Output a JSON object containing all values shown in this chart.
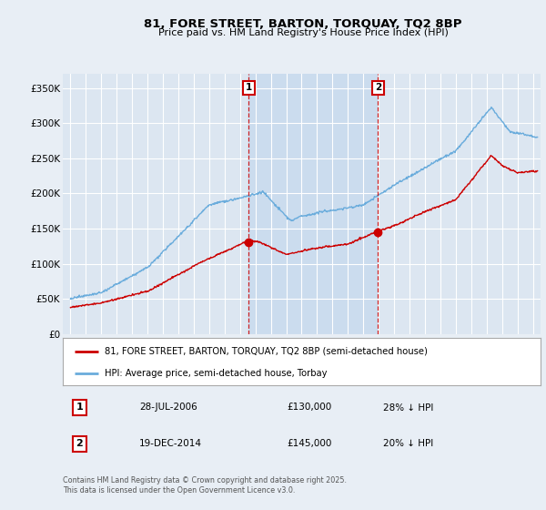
{
  "title": "81, FORE STREET, BARTON, TORQUAY, TQ2 8BP",
  "subtitle": "Price paid vs. HM Land Registry's House Price Index (HPI)",
  "background_color": "#e8eef5",
  "plot_bg_color": "#dce6f1",
  "shade_color": "#c5d8ee",
  "grid_color": "#ffffff",
  "red_line_color": "#cc0000",
  "blue_line_color": "#6aacdc",
  "ylim": [
    0,
    370000
  ],
  "yticks": [
    0,
    50000,
    100000,
    150000,
    200000,
    250000,
    300000,
    350000
  ],
  "ytick_labels": [
    "£0",
    "£50K",
    "£100K",
    "£150K",
    "£200K",
    "£250K",
    "£300K",
    "£350K"
  ],
  "transaction1": {
    "date_label": "28-JUL-2006",
    "date_x": 2006.57,
    "price": 130000,
    "label": "1",
    "pct_label": "28% ↓ HPI"
  },
  "transaction2": {
    "date_label": "19-DEC-2014",
    "date_x": 2014.96,
    "price": 145000,
    "label": "2",
    "pct_label": "20% ↓ HPI"
  },
  "legend_line1": "81, FORE STREET, BARTON, TORQUAY, TQ2 8BP (semi-detached house)",
  "legend_line2": "HPI: Average price, semi-detached house, Torbay",
  "footer": "Contains HM Land Registry data © Crown copyright and database right 2025.\nThis data is licensed under the Open Government Licence v3.0.",
  "xlim_start": 1994.5,
  "xlim_end": 2025.5
}
